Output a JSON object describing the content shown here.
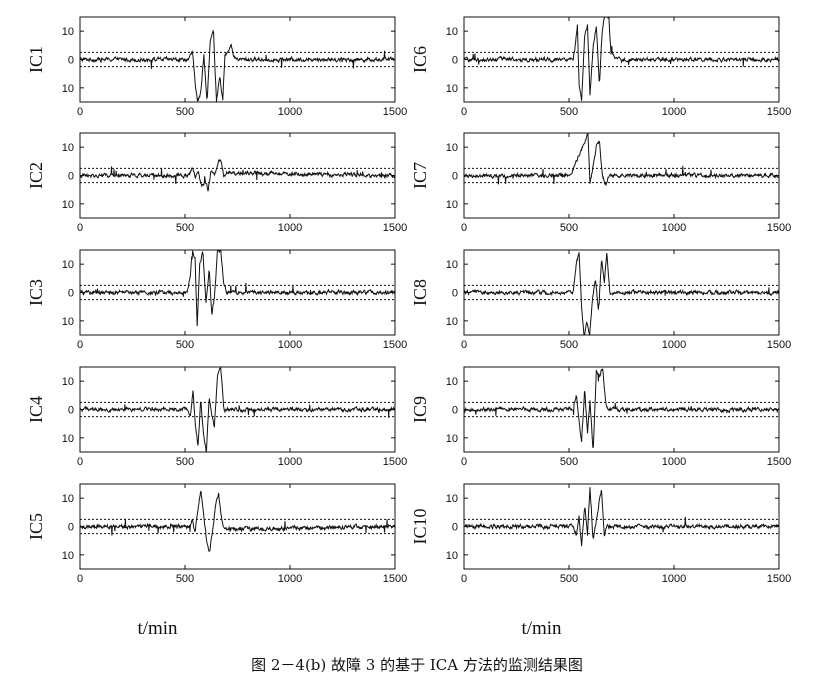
{
  "caption": "图 2－4(b)  故障 3 的基于 ICA 方法的监测结果图",
  "chart_data": {
    "type": "line",
    "xlim": [
      0,
      1500
    ],
    "ylim": [
      -15,
      15
    ],
    "xticks": [
      0,
      500,
      1000,
      1500
    ],
    "xtick_labels": [
      "0",
      "500",
      "1000",
      "1500"
    ],
    "yticks": [
      10,
      0,
      -10
    ],
    "ytick_labels": [
      "10",
      "0",
      "10"
    ],
    "control_limits": [
      2.5,
      -2.5
    ],
    "column_xlabels": [
      "t/min",
      "t/min"
    ],
    "panels": [
      {
        "ylabel": "IC1",
        "fault": [
          [
            0,
            0
          ],
          [
            520,
            0
          ],
          [
            535,
            3
          ],
          [
            548,
            -8
          ],
          [
            560,
            -15
          ],
          [
            575,
            -12
          ],
          [
            590,
            2
          ],
          [
            605,
            -15
          ],
          [
            620,
            6
          ],
          [
            635,
            11
          ],
          [
            650,
            -15
          ],
          [
            665,
            -6
          ],
          [
            680,
            -15
          ],
          [
            690,
            2
          ],
          [
            710,
            3
          ],
          [
            720,
            5
          ],
          [
            730,
            1
          ],
          [
            750,
            0
          ],
          [
            1500,
            0
          ]
        ]
      },
      {
        "ylabel": "IC6",
        "fault": [
          [
            0,
            0
          ],
          [
            520,
            0
          ],
          [
            530,
            5
          ],
          [
            540,
            12
          ],
          [
            548,
            -9
          ],
          [
            560,
            -15
          ],
          [
            575,
            9
          ],
          [
            588,
            12
          ],
          [
            600,
            -13
          ],
          [
            615,
            5
          ],
          [
            630,
            12
          ],
          [
            645,
            -9
          ],
          [
            658,
            10
          ],
          [
            670,
            15
          ],
          [
            690,
            15
          ],
          [
            700,
            2
          ],
          [
            720,
            0
          ],
          [
            1500,
            0
          ]
        ]
      },
      {
        "ylabel": "IC2",
        "fault": [
          [
            0,
            0
          ],
          [
            520,
            0
          ],
          [
            535,
            3
          ],
          [
            550,
            -1
          ],
          [
            565,
            1
          ],
          [
            580,
            -4
          ],
          [
            595,
            -2
          ],
          [
            610,
            -5
          ],
          [
            625,
            2
          ],
          [
            640,
            0
          ],
          [
            655,
            4
          ],
          [
            670,
            6
          ],
          [
            685,
            0
          ],
          [
            700,
            1
          ],
          [
            1500,
            0
          ]
        ]
      },
      {
        "ylabel": "IC7",
        "fault": [
          [
            0,
            0
          ],
          [
            500,
            0
          ],
          [
            520,
            2
          ],
          [
            540,
            6
          ],
          [
            555,
            8
          ],
          [
            570,
            11
          ],
          [
            590,
            15
          ],
          [
            600,
            -3
          ],
          [
            615,
            3
          ],
          [
            630,
            10
          ],
          [
            645,
            12
          ],
          [
            660,
            0
          ],
          [
            675,
            -3
          ],
          [
            690,
            0
          ],
          [
            1500,
            0
          ]
        ]
      },
      {
        "ylabel": "IC3",
        "fault": [
          [
            0,
            0
          ],
          [
            510,
            0
          ],
          [
            525,
            6
          ],
          [
            535,
            15
          ],
          [
            548,
            12
          ],
          [
            558,
            -12
          ],
          [
            570,
            10
          ],
          [
            585,
            14
          ],
          [
            600,
            -4
          ],
          [
            615,
            8
          ],
          [
            628,
            -8
          ],
          [
            640,
            -2
          ],
          [
            655,
            15
          ],
          [
            670,
            15
          ],
          [
            685,
            3
          ],
          [
            700,
            0
          ],
          [
            1500,
            0
          ]
        ]
      },
      {
        "ylabel": "IC8",
        "fault": [
          [
            0,
            0
          ],
          [
            520,
            0
          ],
          [
            535,
            10
          ],
          [
            548,
            14
          ],
          [
            560,
            -5
          ],
          [
            572,
            -15
          ],
          [
            585,
            -10
          ],
          [
            598,
            -15
          ],
          [
            612,
            -3
          ],
          [
            625,
            5
          ],
          [
            640,
            -6
          ],
          [
            655,
            12
          ],
          [
            668,
            4
          ],
          [
            680,
            14
          ],
          [
            695,
            0
          ],
          [
            1500,
            0
          ]
        ]
      },
      {
        "ylabel": "IC4",
        "fault": [
          [
            0,
            0
          ],
          [
            510,
            0
          ],
          [
            525,
            -3
          ],
          [
            538,
            6
          ],
          [
            550,
            -6
          ],
          [
            562,
            -13
          ],
          [
            575,
            3
          ],
          [
            588,
            -9
          ],
          [
            602,
            -15
          ],
          [
            615,
            4
          ],
          [
            628,
            -2
          ],
          [
            640,
            -6
          ],
          [
            655,
            12
          ],
          [
            670,
            15
          ],
          [
            685,
            0
          ],
          [
            1500,
            0
          ]
        ]
      },
      {
        "ylabel": "IC9",
        "fault": [
          [
            0,
            0
          ],
          [
            520,
            0
          ],
          [
            535,
            5
          ],
          [
            548,
            -5
          ],
          [
            560,
            -11
          ],
          [
            575,
            7
          ],
          [
            588,
            -8
          ],
          [
            600,
            3
          ],
          [
            615,
            -15
          ],
          [
            630,
            14
          ],
          [
            645,
            12
          ],
          [
            660,
            15
          ],
          [
            675,
            2
          ],
          [
            690,
            0
          ],
          [
            1500,
            0
          ]
        ]
      },
      {
        "ylabel": "IC5",
        "fault": [
          [
            0,
            0
          ],
          [
            520,
            0
          ],
          [
            535,
            2
          ],
          [
            548,
            -2
          ],
          [
            560,
            5
          ],
          [
            575,
            13
          ],
          [
            590,
            3
          ],
          [
            603,
            -5
          ],
          [
            618,
            -9
          ],
          [
            630,
            -2
          ],
          [
            645,
            7
          ],
          [
            660,
            12
          ],
          [
            675,
            2
          ],
          [
            690,
            -1
          ],
          [
            1500,
            0
          ]
        ]
      },
      {
        "ylabel": "IC10",
        "fault": [
          [
            0,
            0
          ],
          [
            520,
            0
          ],
          [
            535,
            -3
          ],
          [
            548,
            3
          ],
          [
            560,
            -7
          ],
          [
            575,
            7
          ],
          [
            588,
            -3
          ],
          [
            600,
            14
          ],
          [
            615,
            -5
          ],
          [
            628,
            1
          ],
          [
            642,
            8
          ],
          [
            655,
            13
          ],
          [
            668,
            -3
          ],
          [
            680,
            0
          ],
          [
            1500,
            0
          ]
        ]
      }
    ]
  }
}
